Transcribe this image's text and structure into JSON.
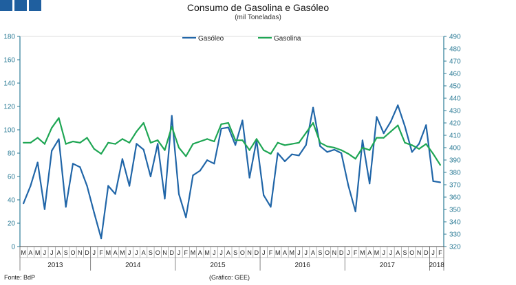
{
  "header": {
    "title": "Consumo de Gasolina e Gasóleo",
    "subtitle": "(mil Toneladas)"
  },
  "footer": {
    "source": "Fonte: BdP",
    "credit": "(Gráfico: GEE)"
  },
  "colors": {
    "gasoleo": "#2166a8",
    "gasolina": "#1fa654",
    "axis": "#2b7b96",
    "brand": "#1f5f9f"
  },
  "chart_data": {
    "type": "line",
    "title": "Consumo de Gasolina e Gasóleo",
    "subtitle": "(mil Toneladas)",
    "months": [
      "M",
      "A",
      "M",
      "J",
      "J",
      "A",
      "S",
      "O",
      "N",
      "D",
      "J",
      "F",
      "M",
      "A",
      "M",
      "J",
      "J",
      "A",
      "S",
      "O",
      "N",
      "D",
      "J",
      "F",
      "M",
      "A",
      "M",
      "J",
      "J",
      "A",
      "S",
      "O",
      "N",
      "D",
      "J",
      "F",
      "M",
      "A",
      "M",
      "J",
      "J",
      "A",
      "S",
      "O",
      "N",
      "D",
      "J",
      "F",
      "M",
      "A",
      "M",
      "J",
      "J",
      "A",
      "S",
      "O",
      "N",
      "D",
      "J",
      "F"
    ],
    "years": [
      {
        "label": "2013",
        "start": 0,
        "count": 10
      },
      {
        "label": "2014",
        "start": 10,
        "count": 12
      },
      {
        "label": "2015",
        "start": 22,
        "count": 12
      },
      {
        "label": "2016",
        "start": 34,
        "count": 12
      },
      {
        "label": "2017",
        "start": 46,
        "count": 12
      },
      {
        "label": "2018",
        "start": 58,
        "count": 2
      }
    ],
    "left_axis": {
      "min": 0,
      "max": 180,
      "step": 20,
      "ticks": [
        "0",
        "20",
        "40",
        "60",
        "80",
        "100",
        "120",
        "140",
        "160",
        "180"
      ]
    },
    "right_axis": {
      "min": 320,
      "max": 490,
      "step": 10,
      "ticks": [
        "320",
        "330",
        "340",
        "350",
        "360",
        "370",
        "380",
        "390",
        "400",
        "410",
        "420",
        "430",
        "440",
        "450",
        "460",
        "470",
        "480",
        "490"
      ]
    },
    "legend_position": "top-center",
    "series": [
      {
        "name": "Gasóleo",
        "axis": "left",
        "values": [
          37,
          52,
          72,
          32,
          82,
          92,
          34,
          71,
          68,
          52,
          29,
          7,
          52,
          45,
          75,
          52,
          88,
          83,
          60,
          88,
          41,
          112,
          45,
          25,
          61,
          65,
          74,
          71,
          101,
          102,
          87,
          108,
          59,
          91,
          44,
          34,
          80,
          73,
          79,
          78,
          87,
          119,
          86,
          81,
          83,
          80,
          52,
          30,
          91,
          54,
          111,
          97,
          107,
          121,
          103,
          81,
          88,
          104,
          56,
          55
        ]
      },
      {
        "name": "Gasolina",
        "axis": "right",
        "values": [
          404,
          404,
          408,
          403,
          416,
          424,
          403,
          405,
          404,
          408,
          399,
          395,
          404,
          403,
          407,
          404,
          413,
          420,
          404,
          406,
          398,
          417,
          400,
          393,
          403,
          405,
          407,
          405,
          419,
          420,
          406,
          406,
          398,
          407,
          398,
          395,
          404,
          402,
          403,
          404,
          412,
          420,
          404,
          401,
          400,
          398,
          395,
          391,
          400,
          398,
          408,
          408,
          413,
          418,
          404,
          402,
          399,
          403,
          395,
          386
        ]
      }
    ]
  }
}
